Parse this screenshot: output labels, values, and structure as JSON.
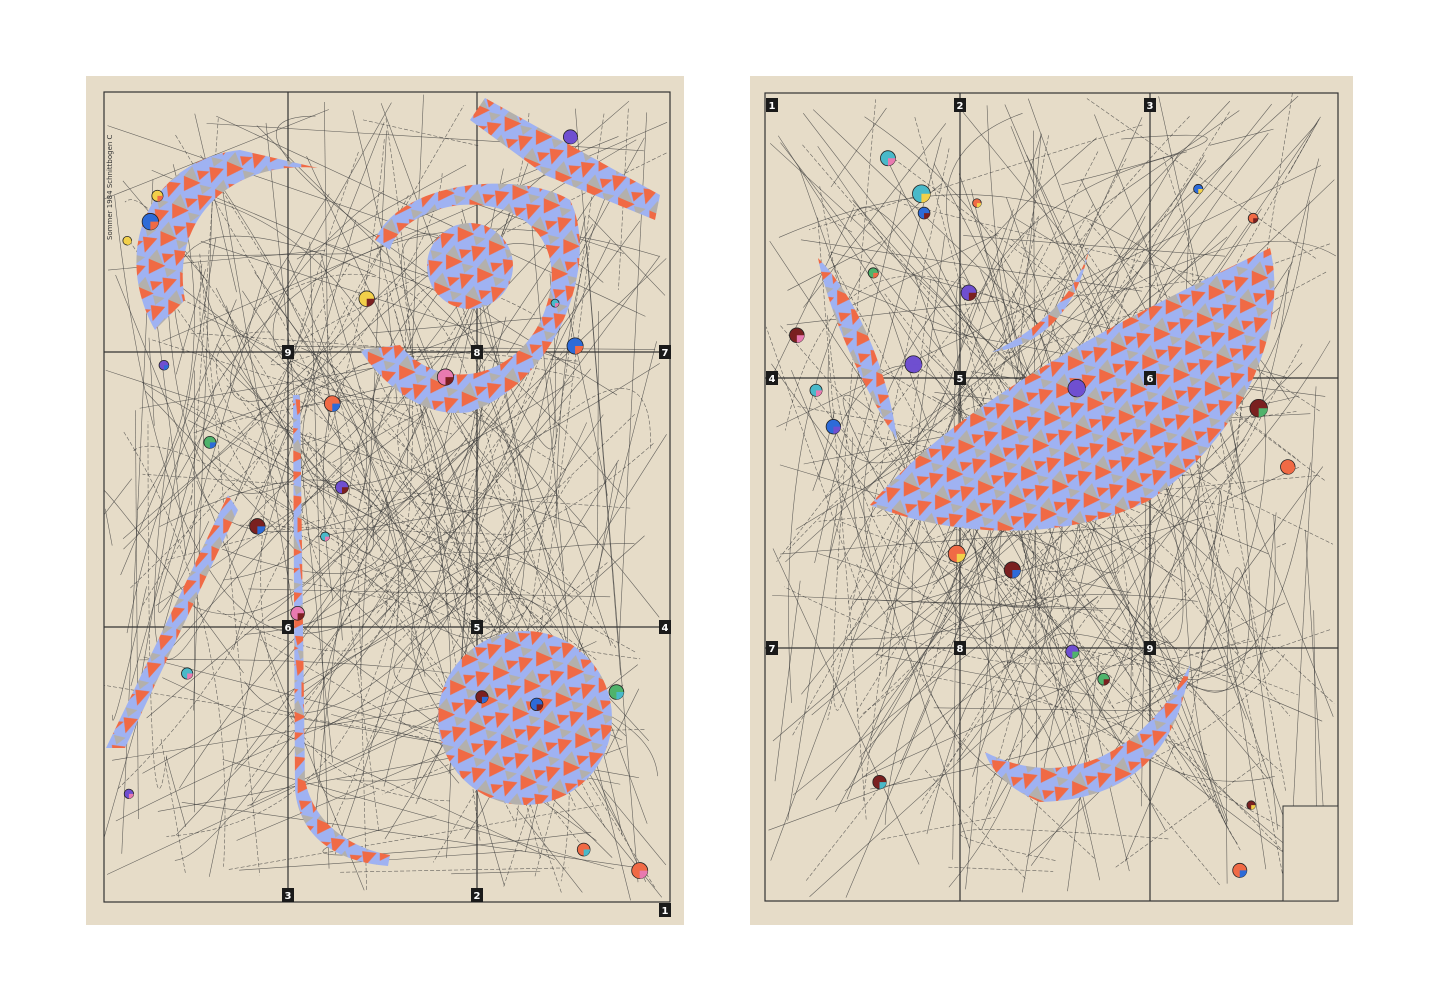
{
  "colors": {
    "paper": "#e6dcc8",
    "ink": "#2b2b2b",
    "blue": "#9fb2f2",
    "orange": "#f06a45",
    "grey": "#b3b0ac"
  },
  "left_sheet": {
    "header": "Sommer 1984 Schnittbogen C",
    "grid_labels": [
      "9",
      "8",
      "7",
      "6",
      "5",
      "4",
      "3",
      "2",
      "1"
    ]
  },
  "right_sheet": {
    "grid_labels": [
      "1",
      "2",
      "3",
      "4",
      "5",
      "6",
      "7",
      "8",
      "9"
    ]
  }
}
